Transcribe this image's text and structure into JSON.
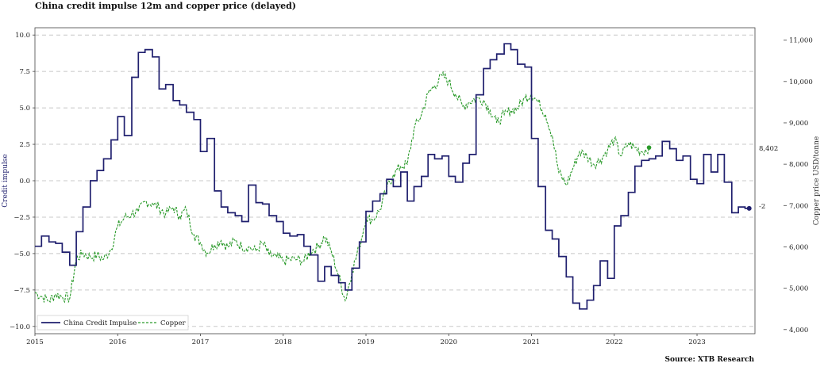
{
  "title": "China credit impulse 12m and copper price (delayed)",
  "source": "Source: XTB Research",
  "chart_data": {
    "type": "line",
    "x_ticks": [
      "2015",
      "2016",
      "2017",
      "2018",
      "2019",
      "2020",
      "2021",
      "2022",
      "2023"
    ],
    "xlim": [
      2015.0,
      2023.7
    ],
    "left_axis": {
      "label": "Credit impulse",
      "ylim": [
        -10.5,
        10.5
      ],
      "ticks": [
        "10.0",
        "7.5",
        "5.0",
        "2.5",
        "0.0",
        "−2.5",
        "−5.0",
        "−7.5",
        "−10.0"
      ],
      "tick_values": [
        10,
        7.5,
        5,
        2.5,
        0,
        -2.5,
        -5,
        -7.5,
        -10
      ]
    },
    "right_axis": {
      "label": "Copper price USD/tonne",
      "ylim": [
        3900,
        11300
      ],
      "ticks": [
        "11,000",
        "10,000",
        "9,000",
        "8,000",
        "7,000",
        "6,000",
        "5,000",
        "4,000"
      ],
      "tick_values": [
        11000,
        10000,
        9000,
        8000,
        7000,
        6000,
        5000,
        4000
      ]
    },
    "last_value_labels": {
      "copper": "8,402",
      "impulse": "-2"
    },
    "grid": true,
    "legend_position": "lower-left",
    "series": [
      {
        "name": "China Credit Impulse",
        "axis": "left",
        "style": "step",
        "color": "#1f1f6e",
        "x": [
          2015.0,
          2015.08,
          2015.17,
          2015.25,
          2015.33,
          2015.42,
          2015.5,
          2015.58,
          2015.67,
          2015.75,
          2015.83,
          2015.92,
          2016.0,
          2016.08,
          2016.17,
          2016.25,
          2016.33,
          2016.42,
          2016.5,
          2016.58,
          2016.67,
          2016.75,
          2016.83,
          2016.92,
          2017.0,
          2017.08,
          2017.17,
          2017.25,
          2017.33,
          2017.42,
          2017.5,
          2017.58,
          2017.67,
          2017.75,
          2017.83,
          2017.92,
          2018.0,
          2018.08,
          2018.17,
          2018.25,
          2018.33,
          2018.42,
          2018.5,
          2018.58,
          2018.67,
          2018.75,
          2018.83,
          2018.92,
          2019.0,
          2019.08,
          2019.17,
          2019.25,
          2019.33,
          2019.42,
          2019.5,
          2019.58,
          2019.67,
          2019.75,
          2019.83,
          2019.92,
          2020.0,
          2020.08,
          2020.17,
          2020.25,
          2020.33,
          2020.42,
          2020.5,
          2020.58,
          2020.67,
          2020.75,
          2020.83,
          2020.92,
          2021.0,
          2021.08,
          2021.17,
          2021.25,
          2021.33,
          2021.42,
          2021.5,
          2021.58,
          2021.67,
          2021.75,
          2021.83,
          2021.92,
          2022.0,
          2022.08,
          2022.17,
          2022.25,
          2022.33,
          2022.42,
          2022.5,
          2022.58,
          2022.67,
          2022.75,
          2022.83,
          2022.92,
          2023.0,
          2023.08,
          2023.17,
          2023.25,
          2023.33,
          2023.42,
          2023.5,
          2023.58
        ],
        "values": [
          -4.5,
          -3.8,
          -4.2,
          -4.3,
          -4.9,
          -5.8,
          -3.5,
          -1.8,
          0.0,
          0.7,
          1.5,
          2.8,
          4.4,
          3.1,
          7.1,
          8.8,
          9.0,
          8.5,
          6.3,
          6.6,
          5.5,
          5.2,
          4.7,
          4.2,
          2.0,
          2.9,
          -0.7,
          -1.8,
          -2.2,
          -2.4,
          -2.8,
          -0.3,
          -1.5,
          -1.6,
          -2.4,
          -2.8,
          -3.6,
          -3.8,
          -3.7,
          -4.5,
          -5.1,
          -6.9,
          -5.9,
          -6.5,
          -7.0,
          -7.5,
          -6.0,
          -4.2,
          -2.1,
          -1.4,
          -0.9,
          0.1,
          -0.4,
          0.6,
          -1.4,
          -0.4,
          0.3,
          1.8,
          1.5,
          1.7,
          0.3,
          -0.1,
          1.2,
          1.8,
          5.9,
          7.7,
          8.3,
          8.7,
          9.4,
          9.0,
          8.0,
          7.8,
          2.9,
          -0.4,
          -3.4,
          -4.0,
          -5.2,
          -6.6,
          -8.4,
          -8.8,
          -8.2,
          -7.2,
          -5.5,
          -6.7,
          -3.1,
          -2.4,
          -0.8,
          1.0,
          1.4,
          1.5,
          1.7,
          2.7,
          2.2,
          1.4,
          1.7,
          0.1,
          -0.2,
          1.8,
          0.6,
          1.8,
          -0.1,
          -2.2,
          -1.8,
          -1.9
        ]
      },
      {
        "name": "Copper",
        "axis": "right",
        "style": "dashed",
        "color": "#2a9a2a",
        "x": [
          2015.0,
          2015.08,
          2015.17,
          2015.25,
          2015.33,
          2015.42,
          2015.5,
          2015.58,
          2015.67,
          2015.75,
          2015.83,
          2015.92,
          2016.0,
          2016.08,
          2016.17,
          2016.25,
          2016.33,
          2016.42,
          2016.5,
          2016.58,
          2016.67,
          2016.75,
          2016.83,
          2016.92,
          2017.0,
          2017.08,
          2017.17,
          2017.25,
          2017.33,
          2017.42,
          2017.5,
          2017.58,
          2017.67,
          2017.75,
          2017.83,
          2017.92,
          2018.0,
          2018.08,
          2018.17,
          2018.25,
          2018.33,
          2018.42,
          2018.5,
          2018.58,
          2018.67,
          2018.75,
          2018.83,
          2018.92,
          2019.0,
          2019.08,
          2019.17,
          2019.25,
          2019.33,
          2019.42,
          2019.5,
          2019.58,
          2019.67,
          2019.75,
          2019.83,
          2019.92,
          2020.0,
          2020.08,
          2020.17,
          2020.25,
          2020.33,
          2020.42,
          2020.5,
          2020.58,
          2020.67,
          2020.75,
          2020.83,
          2020.92,
          2021.0,
          2021.08,
          2021.17,
          2021.25,
          2021.33,
          2021.42,
          2021.5,
          2021.58,
          2021.67,
          2021.75,
          2021.83,
          2021.92,
          2022.0,
          2022.08,
          2022.17,
          2022.25,
          2022.33,
          2022.42
        ],
        "values": [
          4900,
          4800,
          4700,
          4850,
          4800,
          4750,
          5700,
          5850,
          5750,
          5800,
          5700,
          5950,
          6500,
          6700,
          6800,
          6850,
          7100,
          7050,
          6950,
          6800,
          6950,
          6750,
          6900,
          6300,
          6100,
          5850,
          6050,
          6150,
          6000,
          6150,
          6000,
          6000,
          5900,
          6100,
          5800,
          5750,
          5650,
          5700,
          5700,
          5650,
          5900,
          6000,
          6250,
          5900,
          5300,
          4700,
          5400,
          6000,
          6700,
          6650,
          6900,
          7400,
          7750,
          7950,
          8000,
          8850,
          9200,
          9700,
          9900,
          10150,
          10000,
          9700,
          9400,
          9500,
          9600,
          9550,
          9300,
          9000,
          9200,
          9300,
          9350,
          9600,
          9700,
          9500,
          9200,
          8700,
          7800,
          7500,
          7900,
          8300,
          8200,
          8000,
          8100,
          8350,
          8600,
          8200,
          8500,
          8400,
          8300,
          8402
        ]
      }
    ]
  }
}
